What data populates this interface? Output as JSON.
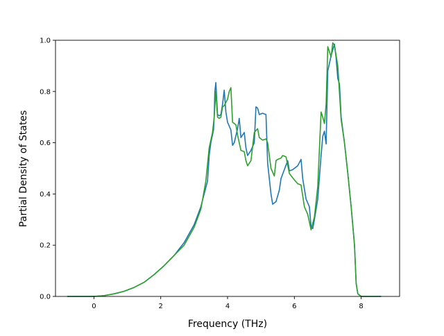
{
  "chart_data": {
    "type": "line",
    "title": "",
    "xlabel": "Frequency (THz)",
    "ylabel": "Partial Density of States",
    "xlim": [
      -1.15,
      9.15
    ],
    "ylim": [
      0.0,
      1.0
    ],
    "x_ticks": [
      0,
      2,
      4,
      6,
      8
    ],
    "y_ticks": [
      0.0,
      0.2,
      0.4,
      0.6,
      0.8,
      1.0
    ],
    "x_tick_labels": [
      "0",
      "2",
      "4",
      "6",
      "8"
    ],
    "y_tick_labels": [
      "0.0",
      "0.2",
      "0.4",
      "0.6",
      "0.8",
      "1.0"
    ],
    "grid": false,
    "legend": "none",
    "series": [
      {
        "color": "#1f77b4",
        "points": [
          [
            -0.8,
            0.0
          ],
          [
            -0.4,
            0.0
          ],
          [
            0.0,
            0.0
          ],
          [
            0.3,
            0.003
          ],
          [
            0.6,
            0.01
          ],
          [
            0.9,
            0.02
          ],
          [
            1.2,
            0.035
          ],
          [
            1.5,
            0.055
          ],
          [
            1.8,
            0.085
          ],
          [
            2.1,
            0.12
          ],
          [
            2.4,
            0.16
          ],
          [
            2.7,
            0.21
          ],
          [
            3.0,
            0.28
          ],
          [
            3.2,
            0.35
          ],
          [
            3.4,
            0.45
          ],
          [
            3.45,
            0.55
          ],
          [
            3.5,
            0.6
          ],
          [
            3.58,
            0.65
          ],
          [
            3.6,
            0.7
          ],
          [
            3.62,
            0.8
          ],
          [
            3.65,
            0.835
          ],
          [
            3.7,
            0.71
          ],
          [
            3.75,
            0.705
          ],
          [
            3.8,
            0.71
          ],
          [
            3.85,
            0.75
          ],
          [
            3.9,
            0.805
          ],
          [
            3.95,
            0.72
          ],
          [
            4.0,
            0.68
          ],
          [
            4.1,
            0.65
          ],
          [
            4.15,
            0.59
          ],
          [
            4.2,
            0.6
          ],
          [
            4.3,
            0.655
          ],
          [
            4.35,
            0.695
          ],
          [
            4.4,
            0.62
          ],
          [
            4.5,
            0.64
          ],
          [
            4.55,
            0.58
          ],
          [
            4.6,
            0.55
          ],
          [
            4.7,
            0.57
          ],
          [
            4.8,
            0.6
          ],
          [
            4.85,
            0.74
          ],
          [
            4.9,
            0.735
          ],
          [
            4.95,
            0.71
          ],
          [
            5.05,
            0.715
          ],
          [
            5.15,
            0.71
          ],
          [
            5.2,
            0.52
          ],
          [
            5.3,
            0.4
          ],
          [
            5.35,
            0.36
          ],
          [
            5.45,
            0.37
          ],
          [
            5.55,
            0.415
          ],
          [
            5.6,
            0.46
          ],
          [
            5.8,
            0.53
          ],
          [
            5.85,
            0.49
          ],
          [
            5.95,
            0.495
          ],
          [
            6.1,
            0.51
          ],
          [
            6.2,
            0.535
          ],
          [
            6.25,
            0.46
          ],
          [
            6.35,
            0.38
          ],
          [
            6.45,
            0.35
          ],
          [
            6.5,
            0.27
          ],
          [
            6.55,
            0.265
          ],
          [
            6.6,
            0.3
          ],
          [
            6.7,
            0.38
          ],
          [
            6.8,
            0.55
          ],
          [
            6.85,
            0.625
          ],
          [
            6.9,
            0.645
          ],
          [
            6.95,
            0.595
          ],
          [
            7.0,
            0.88
          ],
          [
            7.1,
            0.94
          ],
          [
            7.2,
            0.985
          ],
          [
            7.25,
            0.93
          ],
          [
            7.3,
            0.85
          ],
          [
            7.35,
            0.83
          ],
          [
            7.4,
            0.7
          ],
          [
            7.5,
            0.6
          ],
          [
            7.6,
            0.48
          ],
          [
            7.7,
            0.35
          ],
          [
            7.8,
            0.2
          ],
          [
            7.85,
            0.05
          ],
          [
            7.9,
            0.01
          ],
          [
            8.0,
            0.0
          ],
          [
            8.6,
            0.0
          ]
        ]
      },
      {
        "color": "#2ca02c",
        "points": [
          [
            -0.8,
            0.0
          ],
          [
            -0.4,
            0.0
          ],
          [
            0.0,
            0.0
          ],
          [
            0.3,
            0.003
          ],
          [
            0.6,
            0.01
          ],
          [
            0.9,
            0.02
          ],
          [
            1.2,
            0.035
          ],
          [
            1.5,
            0.055
          ],
          [
            1.8,
            0.085
          ],
          [
            2.1,
            0.12
          ],
          [
            2.4,
            0.16
          ],
          [
            2.7,
            0.2
          ],
          [
            3.0,
            0.27
          ],
          [
            3.2,
            0.34
          ],
          [
            3.35,
            0.45
          ],
          [
            3.45,
            0.58
          ],
          [
            3.55,
            0.64
          ],
          [
            3.6,
            0.7
          ],
          [
            3.65,
            0.8
          ],
          [
            3.7,
            0.7
          ],
          [
            3.75,
            0.695
          ],
          [
            3.8,
            0.7
          ],
          [
            3.85,
            0.74
          ],
          [
            3.9,
            0.745
          ],
          [
            4.0,
            0.77
          ],
          [
            4.05,
            0.8
          ],
          [
            4.1,
            0.815
          ],
          [
            4.15,
            0.68
          ],
          [
            4.25,
            0.67
          ],
          [
            4.3,
            0.63
          ],
          [
            4.4,
            0.57
          ],
          [
            4.5,
            0.565
          ],
          [
            4.55,
            0.53
          ],
          [
            4.6,
            0.51
          ],
          [
            4.7,
            0.53
          ],
          [
            4.8,
            0.64
          ],
          [
            4.9,
            0.655
          ],
          [
            4.95,
            0.62
          ],
          [
            5.05,
            0.61
          ],
          [
            5.15,
            0.615
          ],
          [
            5.2,
            0.6
          ],
          [
            5.3,
            0.5
          ],
          [
            5.4,
            0.47
          ],
          [
            5.45,
            0.53
          ],
          [
            5.5,
            0.535
          ],
          [
            5.6,
            0.54
          ],
          [
            5.65,
            0.55
          ],
          [
            5.75,
            0.545
          ],
          [
            5.85,
            0.48
          ],
          [
            6.0,
            0.455
          ],
          [
            6.1,
            0.44
          ],
          [
            6.2,
            0.435
          ],
          [
            6.3,
            0.35
          ],
          [
            6.4,
            0.32
          ],
          [
            6.5,
            0.26
          ],
          [
            6.6,
            0.31
          ],
          [
            6.7,
            0.43
          ],
          [
            6.8,
            0.72
          ],
          [
            6.85,
            0.7
          ],
          [
            6.9,
            0.675
          ],
          [
            6.95,
            0.75
          ],
          [
            7.0,
            0.975
          ],
          [
            7.1,
            0.935
          ],
          [
            7.15,
            0.99
          ],
          [
            7.2,
            0.98
          ],
          [
            7.3,
            0.9
          ],
          [
            7.4,
            0.69
          ],
          [
            7.5,
            0.6
          ],
          [
            7.6,
            0.48
          ],
          [
            7.7,
            0.35
          ],
          [
            7.8,
            0.2
          ],
          [
            7.85,
            0.05
          ],
          [
            7.9,
            0.01
          ],
          [
            8.0,
            0.0
          ],
          [
            8.6,
            0.0
          ]
        ]
      }
    ]
  }
}
